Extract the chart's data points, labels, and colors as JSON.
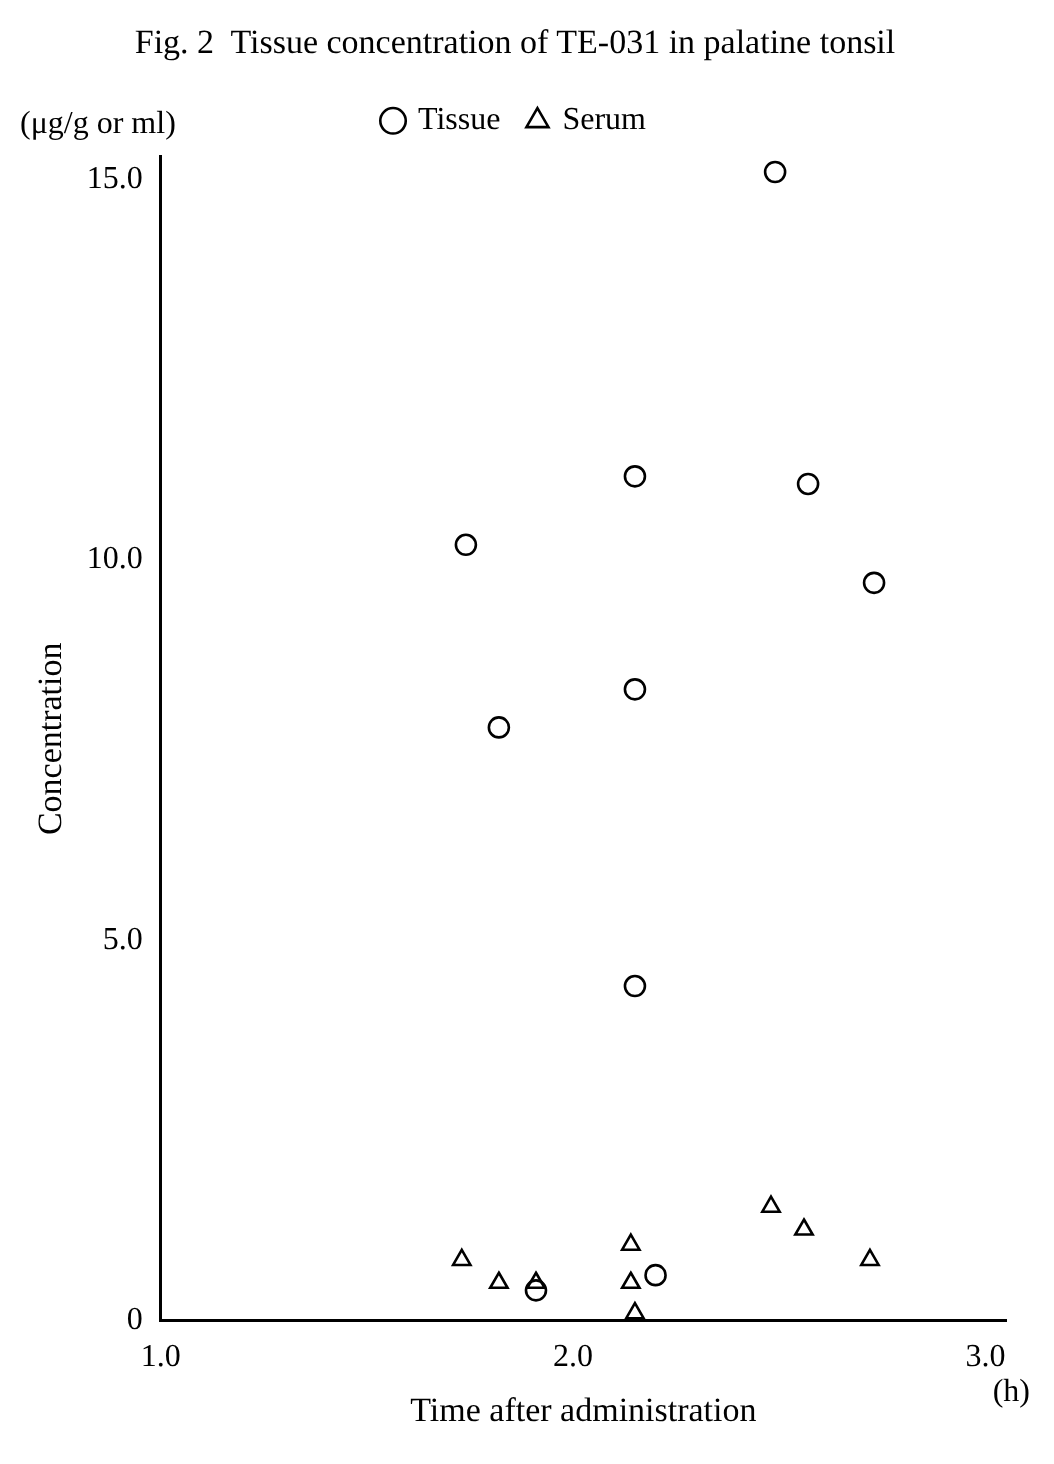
{
  "chart_data": {
    "type": "scatter",
    "title": "Fig. 2  Tissue concentration of TE-031 in palatine tonsil",
    "xlabel": "Time after administration",
    "ylabel": "Concentration",
    "annotations": [
      "(μg/g or ml)",
      "(h)"
    ],
    "series": [
      {
        "name": "Tissue",
        "color": "#000000",
        "marker": "circle",
        "x": [
          2.49,
          2.15,
          2.57,
          1.74,
          2.73,
          2.15,
          1.82,
          2.15,
          1.91,
          2.2
        ],
        "values": [
          15.1,
          11.1,
          11.0,
          10.2,
          9.7,
          8.3,
          7.8,
          4.4,
          0.4,
          0.6
        ]
      },
      {
        "name": "Serum",
        "color": "#000000",
        "marker": "triangle",
        "x": [
          1.73,
          1.82,
          1.91,
          2.14,
          2.14,
          2.15,
          2.48,
          2.56,
          2.72
        ],
        "values": [
          0.8,
          0.5,
          0.5,
          1.0,
          0.5,
          0.1,
          1.5,
          1.2,
          0.8
        ]
      }
    ],
    "xlim": [
      1,
      3.05
    ],
    "xticks": [
      {
        "value": 1,
        "label": "1.0"
      },
      {
        "value": 2,
        "label": "2.0"
      },
      {
        "value": 3,
        "label": "3.0"
      }
    ],
    "ylim": [
      0,
      15.3
    ],
    "yticks": [
      0,
      {
        "value": 5,
        "label": "5.0"
      },
      {
        "value": 10,
        "label": "10.0"
      },
      {
        "value": 15,
        "label": "15.0"
      }
    ],
    "grid": false,
    "legend": "top"
  }
}
